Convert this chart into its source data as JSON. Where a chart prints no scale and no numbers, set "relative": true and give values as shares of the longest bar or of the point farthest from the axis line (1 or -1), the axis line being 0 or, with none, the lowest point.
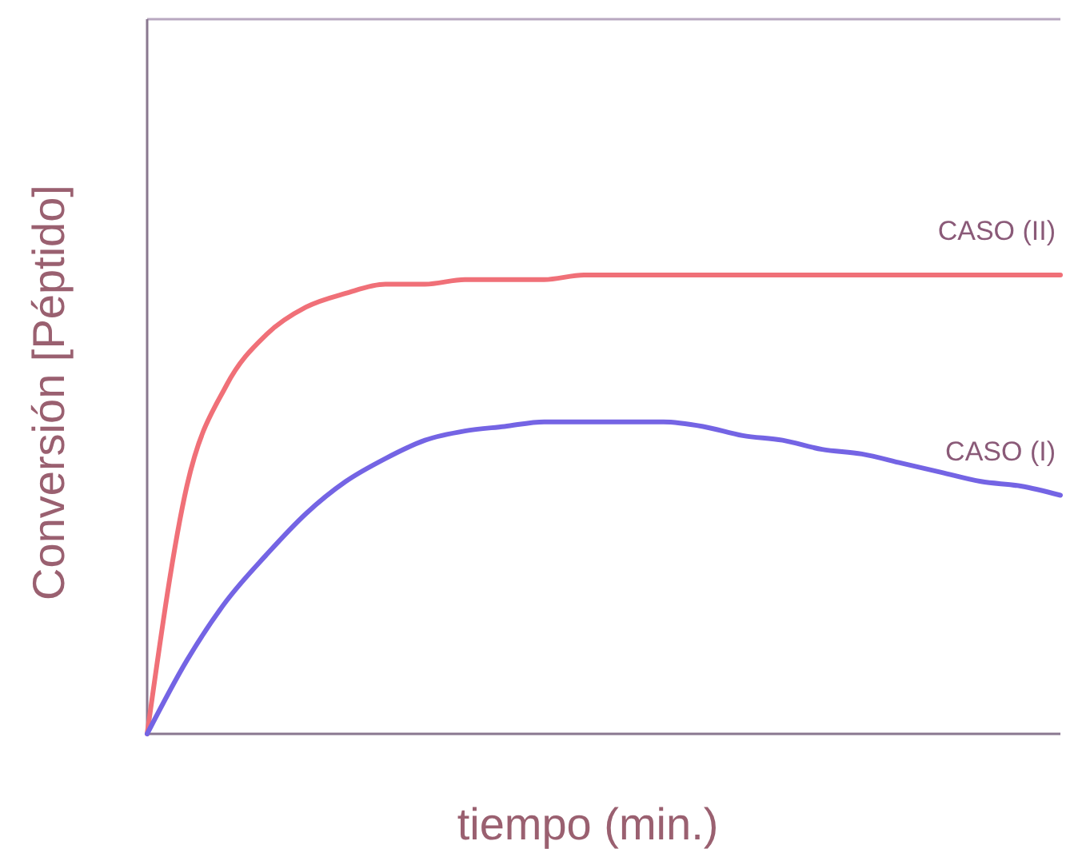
{
  "chart_data": {
    "type": "line",
    "relative": true,
    "xlabel": "tiempo (min.)",
    "ylabel": "Conversión [Péptido]",
    "categories": [
      null,
      null,
      null,
      null,
      null,
      null,
      null,
      null,
      null,
      null,
      null,
      null,
      null,
      null,
      null,
      null,
      null,
      null,
      null,
      null,
      null,
      null,
      null,
      null
    ],
    "marker": "none",
    "line_style": "solid",
    "series": [
      {
        "name": "CASO (II)",
        "color": "#f07078",
        "values": [
          0,
          0.54,
          0.76,
          0.87,
          0.93,
          0.96,
          0.98,
          0.98,
          0.99,
          0.99,
          0.99,
          1,
          1,
          1,
          1,
          1,
          1,
          1,
          1,
          1,
          1,
          1,
          1,
          1
        ]
      },
      {
        "name": "CASO (I)",
        "color": "#7464e4",
        "values": [
          0,
          0.16,
          0.29,
          0.39,
          0.48,
          0.55,
          0.6,
          0.64,
          0.66,
          0.67,
          0.68,
          0.68,
          0.68,
          0.68,
          0.67,
          0.65,
          0.64,
          0.62,
          0.61,
          0.59,
          0.57,
          0.55,
          0.54,
          0.52
        ]
      }
    ]
  }
}
